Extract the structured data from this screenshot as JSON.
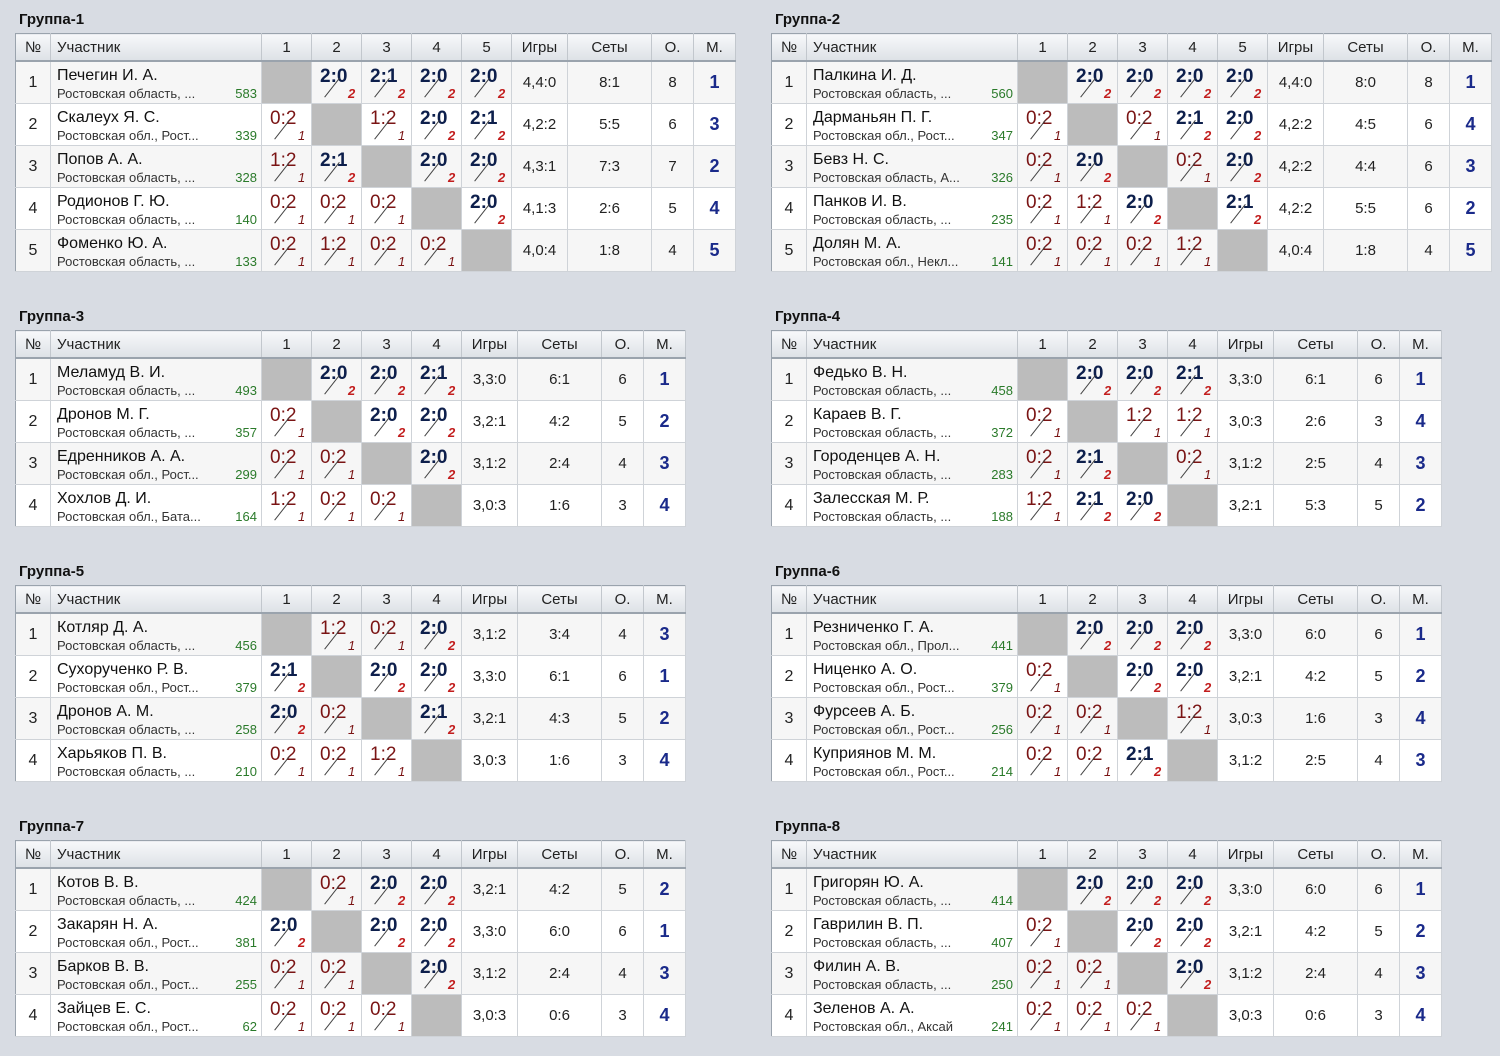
{
  "headers": {
    "num": "№",
    "participant": "Участник",
    "games": "Игры",
    "sets": "Сеты",
    "points": "О.",
    "place": "М."
  },
  "groups": [
    {
      "title": "Группа-1",
      "cols": [
        "1",
        "2",
        "3",
        "4",
        "5"
      ],
      "players": [
        {
          "num": "1",
          "name": "Печегин И. А.",
          "region": "Ростовская область, ...",
          "rating": "583",
          "results": [
            "",
            "2:0",
            "2:1",
            "2:0",
            "2:0"
          ],
          "pts": [
            "",
            "2",
            "2",
            "2",
            "2"
          ],
          "games": "4,4:0",
          "sets": "8:1",
          "points": "8",
          "place": "1"
        },
        {
          "num": "2",
          "name": "Скалеух Я. С.",
          "region": "Ростовская обл., Рост...",
          "rating": "339",
          "results": [
            "0:2",
            "",
            "1:2",
            "2:0",
            "2:1"
          ],
          "pts": [
            "1",
            "",
            "1",
            "2",
            "2"
          ],
          "games": "4,2:2",
          "sets": "5:5",
          "points": "6",
          "place": "3"
        },
        {
          "num": "3",
          "name": "Попов А. А.",
          "region": "Ростовская область, ...",
          "rating": "328",
          "results": [
            "1:2",
            "2:1",
            "",
            "2:0",
            "2:0"
          ],
          "pts": [
            "1",
            "2",
            "",
            "2",
            "2"
          ],
          "games": "4,3:1",
          "sets": "7:3",
          "points": "7",
          "place": "2"
        },
        {
          "num": "4",
          "name": "Родионов Г. Ю.",
          "region": "Ростовская область, ...",
          "rating": "140",
          "results": [
            "0:2",
            "0:2",
            "0:2",
            "",
            "2:0"
          ],
          "pts": [
            "1",
            "1",
            "1",
            "",
            "2"
          ],
          "games": "4,1:3",
          "sets": "2:6",
          "points": "5",
          "place": "4"
        },
        {
          "num": "5",
          "name": "Фоменко Ю. А.",
          "region": "Ростовская область, ...",
          "rating": "133",
          "results": [
            "0:2",
            "1:2",
            "0:2",
            "0:2",
            ""
          ],
          "pts": [
            "1",
            "1",
            "1",
            "1",
            ""
          ],
          "games": "4,0:4",
          "sets": "1:8",
          "points": "4",
          "place": "5"
        }
      ]
    },
    {
      "title": "Группа-2",
      "cols": [
        "1",
        "2",
        "3",
        "4",
        "5"
      ],
      "players": [
        {
          "num": "1",
          "name": "Палкина И. Д.",
          "region": "Ростовская область, ...",
          "rating": "560",
          "results": [
            "",
            "2:0",
            "2:0",
            "2:0",
            "2:0"
          ],
          "pts": [
            "",
            "2",
            "2",
            "2",
            "2"
          ],
          "games": "4,4:0",
          "sets": "8:0",
          "points": "8",
          "place": "1"
        },
        {
          "num": "2",
          "name": "Дарманьян П. Г.",
          "region": "Ростовская обл., Рост...",
          "rating": "347",
          "results": [
            "0:2",
            "",
            "0:2",
            "2:1",
            "2:0"
          ],
          "pts": [
            "1",
            "",
            "1",
            "2",
            "2"
          ],
          "games": "4,2:2",
          "sets": "4:5",
          "points": "6",
          "place": "4"
        },
        {
          "num": "3",
          "name": "Бевз Н. С.",
          "region": "Ростовская область, А...",
          "rating": "326",
          "results": [
            "0:2",
            "2:0",
            "",
            "0:2",
            "2:0"
          ],
          "pts": [
            "1",
            "2",
            "",
            "1",
            "2"
          ],
          "games": "4,2:2",
          "sets": "4:4",
          "points": "6",
          "place": "3"
        },
        {
          "num": "4",
          "name": "Панков И. В.",
          "region": "Ростовская область, ...",
          "rating": "235",
          "results": [
            "0:2",
            "1:2",
            "2:0",
            "",
            "2:1"
          ],
          "pts": [
            "1",
            "1",
            "2",
            "",
            "2"
          ],
          "games": "4,2:2",
          "sets": "5:5",
          "points": "6",
          "place": "2"
        },
        {
          "num": "5",
          "name": "Долян М. А.",
          "region": "Ростовская обл., Некл...",
          "rating": "141",
          "results": [
            "0:2",
            "0:2",
            "0:2",
            "1:2",
            ""
          ],
          "pts": [
            "1",
            "1",
            "1",
            "1",
            ""
          ],
          "games": "4,0:4",
          "sets": "1:8",
          "points": "4",
          "place": "5"
        }
      ]
    },
    {
      "title": "Группа-3",
      "cols": [
        "1",
        "2",
        "3",
        "4"
      ],
      "players": [
        {
          "num": "1",
          "name": "Меламуд В. И.",
          "region": "Ростовская область, ...",
          "rating": "493",
          "results": [
            "",
            "2:0",
            "2:0",
            "2:1"
          ],
          "pts": [
            "",
            "2",
            "2",
            "2"
          ],
          "games": "3,3:0",
          "sets": "6:1",
          "points": "6",
          "place": "1"
        },
        {
          "num": "2",
          "name": "Дронов М. Г.",
          "region": "Ростовская область, ...",
          "rating": "357",
          "results": [
            "0:2",
            "",
            "2:0",
            "2:0"
          ],
          "pts": [
            "1",
            "",
            "2",
            "2"
          ],
          "games": "3,2:1",
          "sets": "4:2",
          "points": "5",
          "place": "2"
        },
        {
          "num": "3",
          "name": "Едренников А. А.",
          "region": "Ростовская обл., Рост...",
          "rating": "299",
          "results": [
            "0:2",
            "0:2",
            "",
            "2:0"
          ],
          "pts": [
            "1",
            "1",
            "",
            "2"
          ],
          "games": "3,1:2",
          "sets": "2:4",
          "points": "4",
          "place": "3"
        },
        {
          "num": "4",
          "name": "Хохлов Д. И.",
          "region": "Ростовская обл., Бата...",
          "rating": "164",
          "results": [
            "1:2",
            "0:2",
            "0:2",
            ""
          ],
          "pts": [
            "1",
            "1",
            "1",
            ""
          ],
          "games": "3,0:3",
          "sets": "1:6",
          "points": "3",
          "place": "4"
        }
      ]
    },
    {
      "title": "Группа-4",
      "cols": [
        "1",
        "2",
        "3",
        "4"
      ],
      "players": [
        {
          "num": "1",
          "name": "Федько В. Н.",
          "region": "Ростовская область, ...",
          "rating": "458",
          "results": [
            "",
            "2:0",
            "2:0",
            "2:1"
          ],
          "pts": [
            "",
            "2",
            "2",
            "2"
          ],
          "games": "3,3:0",
          "sets": "6:1",
          "points": "6",
          "place": "1"
        },
        {
          "num": "2",
          "name": "Караев В. Г.",
          "region": "Ростовская область, ...",
          "rating": "372",
          "results": [
            "0:2",
            "",
            "1:2",
            "1:2"
          ],
          "pts": [
            "1",
            "",
            "1",
            "1"
          ],
          "games": "3,0:3",
          "sets": "2:6",
          "points": "3",
          "place": "4"
        },
        {
          "num": "3",
          "name": "Городенцев А. Н.",
          "region": "Ростовская область, ...",
          "rating": "283",
          "results": [
            "0:2",
            "2:1",
            "",
            "0:2"
          ],
          "pts": [
            "1",
            "2",
            "",
            "1"
          ],
          "games": "3,1:2",
          "sets": "2:5",
          "points": "4",
          "place": "3"
        },
        {
          "num": "4",
          "name": "Залесская М. Р.",
          "region": "Ростовская область, ...",
          "rating": "188",
          "results": [
            "1:2",
            "2:1",
            "2:0",
            ""
          ],
          "pts": [
            "1",
            "2",
            "2",
            ""
          ],
          "games": "3,2:1",
          "sets": "5:3",
          "points": "5",
          "place": "2"
        }
      ]
    },
    {
      "title": "Группа-5",
      "cols": [
        "1",
        "2",
        "3",
        "4"
      ],
      "players": [
        {
          "num": "1",
          "name": "Котляр Д. А.",
          "region": "Ростовская область, ...",
          "rating": "456",
          "results": [
            "",
            "1:2",
            "0:2",
            "2:0"
          ],
          "pts": [
            "",
            "1",
            "1",
            "2"
          ],
          "games": "3,1:2",
          "sets": "3:4",
          "points": "4",
          "place": "3"
        },
        {
          "num": "2",
          "name": "Сухорученко Р. В.",
          "region": "Ростовская обл., Рост...",
          "rating": "379",
          "results": [
            "2:1",
            "",
            "2:0",
            "2:0"
          ],
          "pts": [
            "2",
            "",
            "2",
            "2"
          ],
          "games": "3,3:0",
          "sets": "6:1",
          "points": "6",
          "place": "1"
        },
        {
          "num": "3",
          "name": "Дронов А. М.",
          "region": "Ростовская область, ...",
          "rating": "258",
          "results": [
            "2:0",
            "0:2",
            "",
            "2:1"
          ],
          "pts": [
            "2",
            "1",
            "",
            "2"
          ],
          "games": "3,2:1",
          "sets": "4:3",
          "points": "5",
          "place": "2"
        },
        {
          "num": "4",
          "name": "Харьяков П. В.",
          "region": "Ростовская область, ...",
          "rating": "210",
          "results": [
            "0:2",
            "0:2",
            "1:2",
            ""
          ],
          "pts": [
            "1",
            "1",
            "1",
            ""
          ],
          "games": "3,0:3",
          "sets": "1:6",
          "points": "3",
          "place": "4"
        }
      ]
    },
    {
      "title": "Группа-6",
      "cols": [
        "1",
        "2",
        "3",
        "4"
      ],
      "players": [
        {
          "num": "1",
          "name": "Резниченко Г. А.",
          "region": "Ростовская обл., Прол...",
          "rating": "441",
          "results": [
            "",
            "2:0",
            "2:0",
            "2:0"
          ],
          "pts": [
            "",
            "2",
            "2",
            "2"
          ],
          "games": "3,3:0",
          "sets": "6:0",
          "points": "6",
          "place": "1"
        },
        {
          "num": "2",
          "name": "Ниценко А. О.",
          "region": "Ростовская обл., Рост...",
          "rating": "379",
          "results": [
            "0:2",
            "",
            "2:0",
            "2:0"
          ],
          "pts": [
            "1",
            "",
            "2",
            "2"
          ],
          "games": "3,2:1",
          "sets": "4:2",
          "points": "5",
          "place": "2"
        },
        {
          "num": "3",
          "name": "Фурсеев А. Б.",
          "region": "Ростовская обл., Рост...",
          "rating": "256",
          "results": [
            "0:2",
            "0:2",
            "",
            "1:2"
          ],
          "pts": [
            "1",
            "1",
            "",
            "1"
          ],
          "games": "3,0:3",
          "sets": "1:6",
          "points": "3",
          "place": "4"
        },
        {
          "num": "4",
          "name": "Куприянов М. М.",
          "region": "Ростовская обл., Рост...",
          "rating": "214",
          "results": [
            "0:2",
            "0:2",
            "2:1",
            ""
          ],
          "pts": [
            "1",
            "1",
            "2",
            ""
          ],
          "games": "3,1:2",
          "sets": "2:5",
          "points": "4",
          "place": "3"
        }
      ]
    },
    {
      "title": "Группа-7",
      "cols": [
        "1",
        "2",
        "3",
        "4"
      ],
      "players": [
        {
          "num": "1",
          "name": "Котов В. В.",
          "region": "Ростовская область, ...",
          "rating": "424",
          "results": [
            "",
            "0:2",
            "2:0",
            "2:0"
          ],
          "pts": [
            "",
            "1",
            "2",
            "2"
          ],
          "games": "3,2:1",
          "sets": "4:2",
          "points": "5",
          "place": "2"
        },
        {
          "num": "2",
          "name": "Закарян Н. А.",
          "region": "Ростовская обл., Рост...",
          "rating": "381",
          "results": [
            "2:0",
            "",
            "2:0",
            "2:0"
          ],
          "pts": [
            "2",
            "",
            "2",
            "2"
          ],
          "games": "3,3:0",
          "sets": "6:0",
          "points": "6",
          "place": "1"
        },
        {
          "num": "3",
          "name": "Барков В. В.",
          "region": "Ростовская обл., Рост...",
          "rating": "255",
          "results": [
            "0:2",
            "0:2",
            "",
            "2:0"
          ],
          "pts": [
            "1",
            "1",
            "",
            "2"
          ],
          "games": "3,1:2",
          "sets": "2:4",
          "points": "4",
          "place": "3"
        },
        {
          "num": "4",
          "name": "Зайцев Е. С.",
          "region": "Ростовская обл., Рост...",
          "rating": "62",
          "results": [
            "0:2",
            "0:2",
            "0:2",
            ""
          ],
          "pts": [
            "1",
            "1",
            "1",
            ""
          ],
          "games": "3,0:3",
          "sets": "0:6",
          "points": "3",
          "place": "4"
        }
      ]
    },
    {
      "title": "Группа-8",
      "cols": [
        "1",
        "2",
        "3",
        "4"
      ],
      "players": [
        {
          "num": "1",
          "name": "Григорян Ю. А.",
          "region": "Ростовская область, ...",
          "rating": "414",
          "results": [
            "",
            "2:0",
            "2:0",
            "2:0"
          ],
          "pts": [
            "",
            "2",
            "2",
            "2"
          ],
          "games": "3,3:0",
          "sets": "6:0",
          "points": "6",
          "place": "1"
        },
        {
          "num": "2",
          "name": "Гаврилин В. П.",
          "region": "Ростовская область, ...",
          "rating": "407",
          "results": [
            "0:2",
            "",
            "2:0",
            "2:0"
          ],
          "pts": [
            "1",
            "",
            "2",
            "2"
          ],
          "games": "3,2:1",
          "sets": "4:2",
          "points": "5",
          "place": "2"
        },
        {
          "num": "3",
          "name": "Филин А. В.",
          "region": "Ростовская область, ...",
          "rating": "250",
          "results": [
            "0:2",
            "0:2",
            "",
            "2:0"
          ],
          "pts": [
            "1",
            "1",
            "",
            "2"
          ],
          "games": "3,1:2",
          "sets": "2:4",
          "points": "4",
          "place": "3"
        },
        {
          "num": "4",
          "name": "Зеленов А. А.",
          "region": "Ростовская обл., Аксай",
          "rating": "241",
          "results": [
            "0:2",
            "0:2",
            "0:2",
            ""
          ],
          "pts": [
            "1",
            "1",
            "1",
            ""
          ],
          "games": "3,0:3",
          "sets": "0:6",
          "points": "3",
          "place": "4"
        }
      ]
    }
  ]
}
